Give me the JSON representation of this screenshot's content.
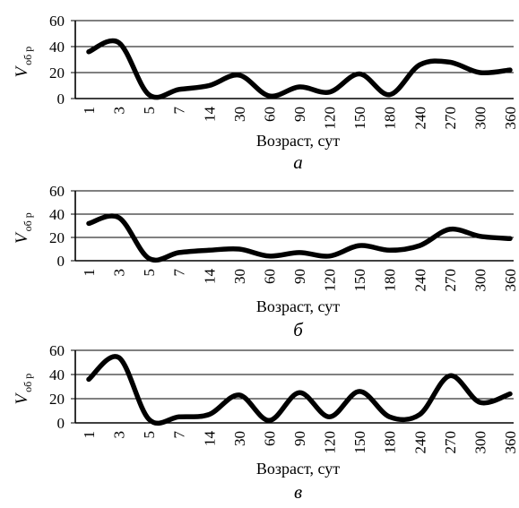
{
  "chart_data": [
    {
      "type": "line",
      "panel_label": "а",
      "ylabel": "V",
      "ylabel_sub": "об р",
      "xlabel": "Возраст, сут",
      "ylim": [
        0,
        60
      ],
      "yticks": [
        "0",
        "20",
        "40",
        "60"
      ],
      "categories": [
        "1",
        "3",
        "5",
        "7",
        "14",
        "30",
        "60",
        "90",
        "120",
        "150",
        "180",
        "240",
        "270",
        "300",
        "360"
      ],
      "series": [
        {
          "values": [
            36,
            43,
            3,
            7,
            10,
            18,
            2,
            9,
            5,
            19,
            3,
            26,
            28,
            20,
            22
          ]
        }
      ],
      "grid": true
    },
    {
      "type": "line",
      "panel_label": "б",
      "ylabel": "V",
      "ylabel_sub": "об р",
      "xlabel": "Возраст, сут",
      "ylim": [
        0,
        60
      ],
      "yticks": [
        "0",
        "20",
        "40",
        "60"
      ],
      "categories": [
        "1",
        "3",
        "5",
        "7",
        "14",
        "30",
        "60",
        "90",
        "120",
        "150",
        "180",
        "240",
        "270",
        "300",
        "360"
      ],
      "series": [
        {
          "values": [
            32,
            37,
            2,
            7,
            9,
            10,
            4,
            7,
            4,
            13,
            9,
            13,
            27,
            21,
            19
          ]
        }
      ],
      "grid": true
    },
    {
      "type": "line",
      "panel_label": "в",
      "ylabel": "V",
      "ylabel_sub": "об р",
      "xlabel": "Возраст, сут",
      "ylim": [
        0,
        60
      ],
      "yticks": [
        "0",
        "20",
        "40",
        "60"
      ],
      "categories": [
        "1",
        "3",
        "5",
        "7",
        "14",
        "30",
        "60",
        "90",
        "120",
        "150",
        "180",
        "240",
        "270",
        "300",
        "360"
      ],
      "series": [
        {
          "values": [
            36,
            54,
            3,
            5,
            7,
            23,
            2,
            25,
            5,
            26,
            5,
            7,
            39,
            17,
            24
          ]
        }
      ],
      "grid": true
    }
  ]
}
